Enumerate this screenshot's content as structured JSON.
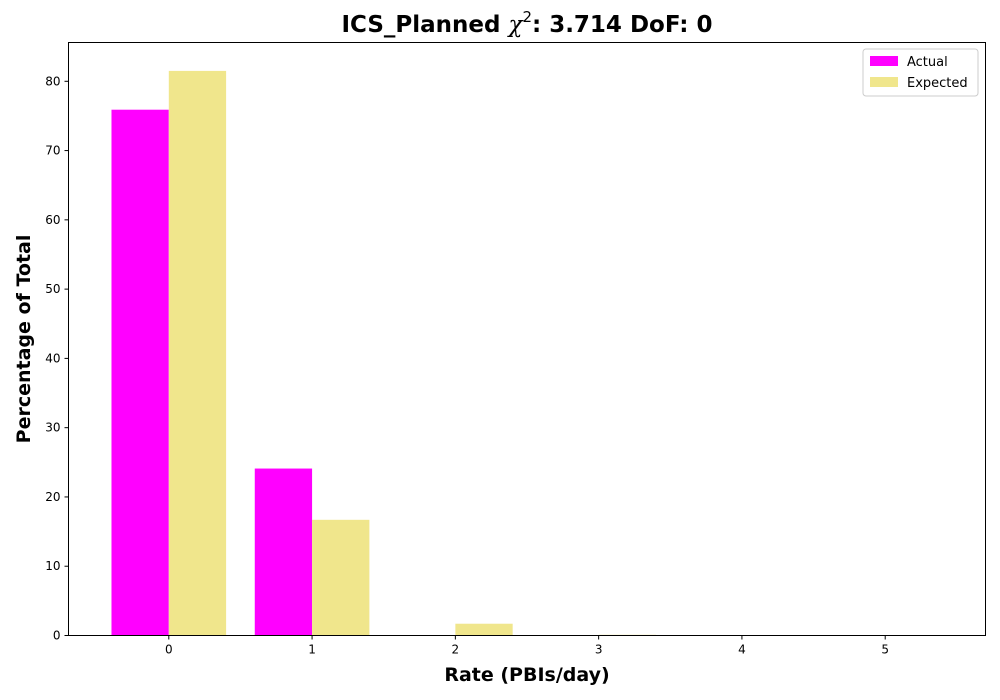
{
  "chart_data": {
    "type": "bar",
    "title": {
      "prefix": "ICS_Planned ",
      "symbol": "χ",
      "superscript": "2",
      "suffix": ": 3.714 DoF: 0"
    },
    "xlabel": "Rate (PBIs/day)",
    "ylabel": "Percentage of Total",
    "categories": [
      "0",
      "1",
      "2",
      "3",
      "4",
      "5"
    ],
    "x": [
      0,
      1,
      2,
      3,
      4,
      5
    ],
    "series": [
      {
        "name": "Actual",
        "color": "#ff00ff",
        "values": [
          75.9,
          24.1,
          0,
          0,
          0,
          0
        ]
      },
      {
        "name": "Expected",
        "color": "#f0e68c",
        "values": [
          81.5,
          16.7,
          1.7,
          0.1,
          0,
          0
        ]
      }
    ],
    "xlim": [
      -0.7,
      5.7
    ],
    "ylim": [
      0,
      85.6
    ],
    "yticks": [
      0,
      10,
      20,
      30,
      40,
      50,
      60,
      70,
      80
    ],
    "grid": false,
    "legend_position": "top-right"
  }
}
